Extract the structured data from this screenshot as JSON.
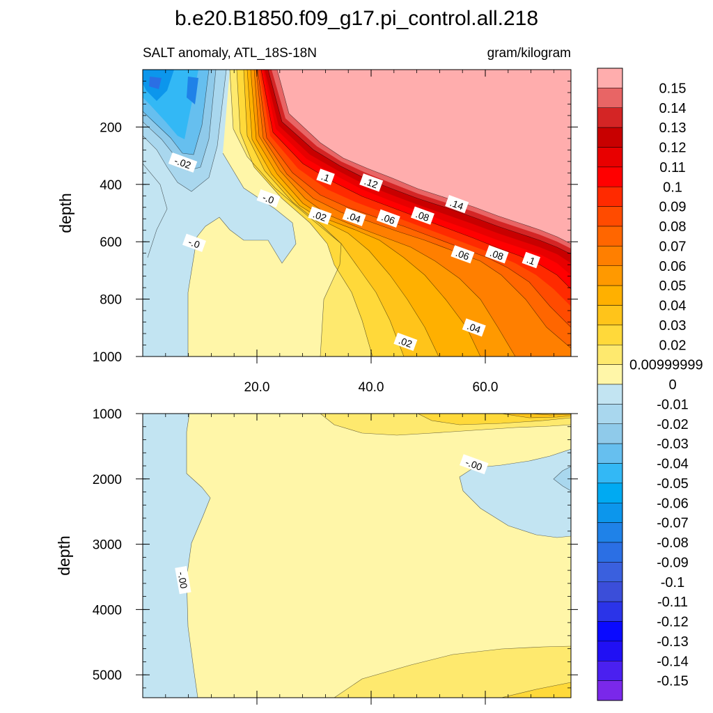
{
  "chart_data": {
    "type": "heatmap",
    "title": "b.e20.B1850.f09_g17.pi_control.all.218",
    "left_subtitle": "SALT anomaly, ATL_18S-18N",
    "right_subtitle": "gram/kilogram",
    "ylabel": "depth",
    "x_ticks": [
      "20.0",
      "40.0",
      "60.0"
    ],
    "x_tick_values": [
      20,
      40,
      60
    ],
    "xlim": [
      0,
      75
    ],
    "panels": [
      {
        "name": "upper",
        "ylim": [
          1000,
          0
        ],
        "y_ticks": [
          "200",
          "400",
          "600",
          "800",
          "1000"
        ],
        "y_tick_values": [
          200,
          400,
          600,
          800,
          1000
        ]
      },
      {
        "name": "lower",
        "ylim": [
          5350,
          1000
        ],
        "y_ticks": [
          "1000",
          "2000",
          "3000",
          "4000",
          "5000"
        ],
        "y_tick_values": [
          1000,
          2000,
          3000,
          4000,
          5000
        ]
      }
    ],
    "contour_labels_upper": [
      {
        "text": "-.02",
        "x": 7,
        "y": 325
      },
      {
        "text": "-.0",
        "x": 22,
        "y": 450
      },
      {
        "text": ".1",
        "x": 32,
        "y": 375
      },
      {
        "text": ".12",
        "x": 40,
        "y": 395
      },
      {
        "text": ".02",
        "x": 31,
        "y": 510
      },
      {
        "text": ".04",
        "x": 37,
        "y": 515
      },
      {
        "text": ".06",
        "x": 43,
        "y": 520
      },
      {
        "text": ".08",
        "x": 49,
        "y": 510
      },
      {
        "text": ".14",
        "x": 55,
        "y": 470
      },
      {
        "text": "-.0",
        "x": 9,
        "y": 605
      },
      {
        "text": ".06",
        "x": 56,
        "y": 645
      },
      {
        "text": ".08",
        "x": 62,
        "y": 645
      },
      {
        "text": ".1",
        "x": 68,
        "y": 665
      },
      {
        "text": ".04",
        "x": 58,
        "y": 900
      },
      {
        "text": ".02",
        "x": 46,
        "y": 950
      }
    ],
    "contour_labels_lower": [
      {
        "text": "-.00",
        "x": 58,
        "y": 1780
      },
      {
        "text": "-.00",
        "x": 7,
        "y": 3550
      }
    ],
    "colorbar": {
      "labels": [
        "0.15",
        "0.14",
        "0.13",
        "0.12",
        "0.11",
        "0.1",
        "0.09",
        "0.08",
        "0.07",
        "0.06",
        "0.05",
        "0.04",
        "0.03",
        "0.02",
        "0.00999999",
        "0",
        "-0.01",
        "-0.02",
        "-0.03",
        "-0.04",
        "-0.05",
        "-0.06",
        "-0.07",
        "-0.08",
        "-0.09",
        "-0.1",
        "-0.11",
        "-0.12",
        "-0.13",
        "-0.14",
        "-0.15"
      ],
      "colors": [
        "#ffadad",
        "#e86565",
        "#d42525",
        "#c80000",
        "#e80000",
        "#ff0000",
        "#ff2a00",
        "#ff4b00",
        "#ff6600",
        "#ff7f00",
        "#ff9900",
        "#ffb000",
        "#ffc41a",
        "#ffd93a",
        "#fee96e",
        "#fff6a8",
        "#c2e4f2",
        "#a9d7ee",
        "#8fcaea",
        "#66bfef",
        "#33b8f5",
        "#00aaf2",
        "#0c96ec",
        "#1f82e8",
        "#2b6fe4",
        "#3a60de",
        "#3b4ed9",
        "#2b34e8",
        "#0a0aff",
        "#2010f4",
        "#4a20f0",
        "#7a28ea"
      ]
    }
  }
}
